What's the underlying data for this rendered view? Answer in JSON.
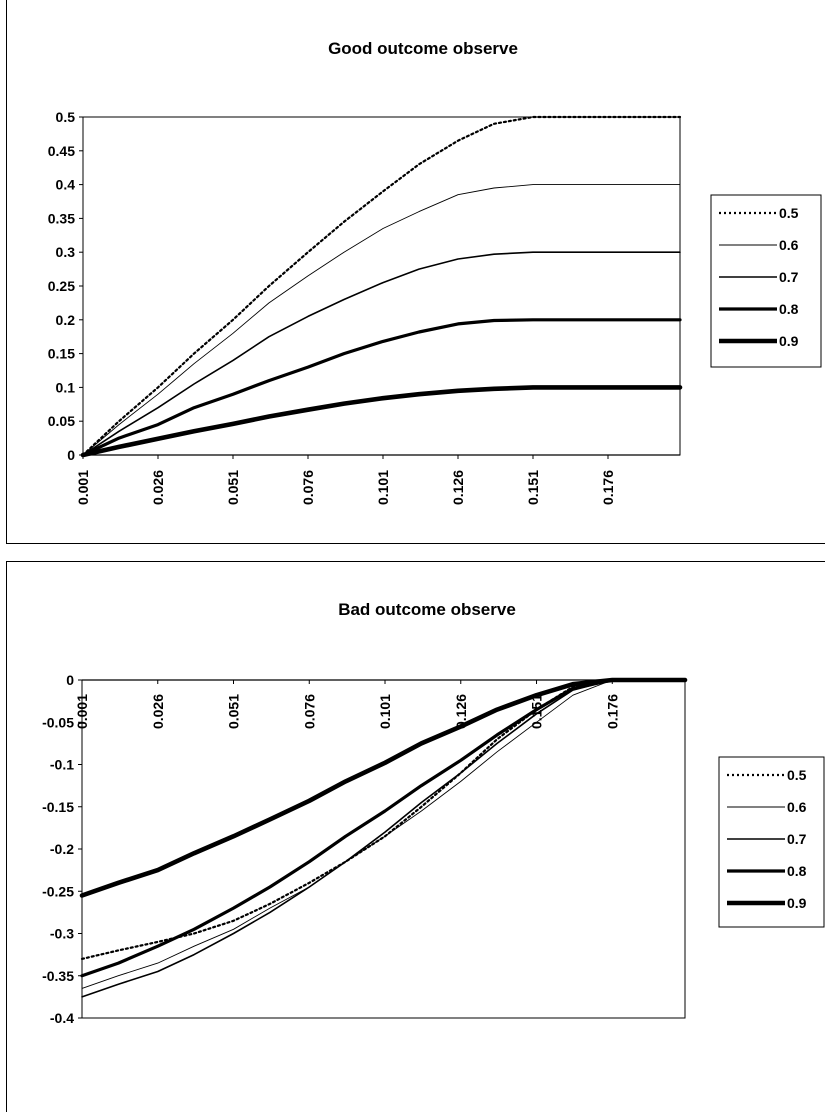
{
  "chart_data": [
    {
      "type": "line",
      "title": "Good outcome observe",
      "xlabel": "",
      "ylabel": "",
      "x_tick_labels": [
        "0.001",
        "0.026",
        "0.051",
        "0.076",
        "0.101",
        "0.126",
        "0.151",
        "0.176"
      ],
      "y_tick_labels": [
        "0.5",
        "0.45",
        "0.4",
        "0.35",
        "0.3",
        "0.25",
        "0.2",
        "0.15",
        "0.1",
        "0.05",
        "0"
      ],
      "xlim": [
        0.001,
        0.2
      ],
      "ylim": [
        0,
        0.5
      ],
      "grid": false,
      "legend_position": "right",
      "x": [
        0.001,
        0.013,
        0.026,
        0.038,
        0.051,
        0.063,
        0.076,
        0.088,
        0.101,
        0.113,
        0.126,
        0.138,
        0.151,
        0.163,
        0.176,
        0.188,
        0.2
      ],
      "series": [
        {
          "name": "0.5",
          "values": [
            0,
            0.05,
            0.1,
            0.15,
            0.2,
            0.25,
            0.3,
            0.345,
            0.39,
            0.43,
            0.465,
            0.49,
            0.5,
            0.5,
            0.5,
            0.5,
            0.5
          ]
        },
        {
          "name": "0.6",
          "values": [
            0,
            0.045,
            0.09,
            0.135,
            0.18,
            0.225,
            0.265,
            0.3,
            0.335,
            0.36,
            0.385,
            0.395,
            0.4,
            0.4,
            0.4,
            0.4,
            0.4
          ]
        },
        {
          "name": "0.7",
          "values": [
            0,
            0.035,
            0.07,
            0.105,
            0.14,
            0.175,
            0.205,
            0.23,
            0.255,
            0.275,
            0.29,
            0.297,
            0.3,
            0.3,
            0.3,
            0.3,
            0.3
          ]
        },
        {
          "name": "0.8",
          "values": [
            0,
            0.025,
            0.045,
            0.07,
            0.09,
            0.11,
            0.13,
            0.15,
            0.168,
            0.182,
            0.194,
            0.199,
            0.2,
            0.2,
            0.2,
            0.2,
            0.2
          ]
        },
        {
          "name": "0.9",
          "values": [
            0,
            0.012,
            0.024,
            0.035,
            0.046,
            0.057,
            0.067,
            0.076,
            0.084,
            0.09,
            0.095,
            0.098,
            0.1,
            0.1,
            0.1,
            0.1,
            0.1
          ]
        }
      ],
      "colors": {
        "line": "#000000",
        "background": "#ffffff"
      }
    },
    {
      "type": "line",
      "title": "Bad outcome observe",
      "xlabel": "",
      "ylabel": "",
      "x_tick_labels": [
        "0.001",
        "0.026",
        "0.051",
        "0.076",
        "0.101",
        "0.126",
        "0.151",
        "0.176"
      ],
      "y_tick_labels": [
        "0",
        "-0.05",
        "-0.1",
        "-0.15",
        "-0.2",
        "-0.25",
        "-0.3",
        "-0.35",
        "-0.4"
      ],
      "xlim": [
        0.001,
        0.2
      ],
      "ylim": [
        -0.4,
        0
      ],
      "grid": false,
      "legend_position": "right",
      "x": [
        0.001,
        0.013,
        0.026,
        0.038,
        0.051,
        0.063,
        0.076,
        0.088,
        0.101,
        0.113,
        0.126,
        0.138,
        0.151,
        0.163,
        0.176,
        0.188,
        0.2
      ],
      "series": [
        {
          "name": "0.5",
          "values": [
            -0.33,
            -0.32,
            -0.31,
            -0.3,
            -0.285,
            -0.265,
            -0.24,
            -0.215,
            -0.185,
            -0.15,
            -0.11,
            -0.07,
            -0.035,
            -0.008,
            0,
            0,
            0
          ]
        },
        {
          "name": "0.6",
          "values": [
            -0.365,
            -0.35,
            -0.335,
            -0.315,
            -0.295,
            -0.27,
            -0.245,
            -0.215,
            -0.185,
            -0.155,
            -0.12,
            -0.085,
            -0.05,
            -0.018,
            0,
            0,
            0
          ]
        },
        {
          "name": "0.7",
          "values": [
            -0.375,
            -0.36,
            -0.345,
            -0.325,
            -0.3,
            -0.275,
            -0.245,
            -0.215,
            -0.18,
            -0.145,
            -0.11,
            -0.075,
            -0.04,
            -0.012,
            0,
            0,
            0
          ]
        },
        {
          "name": "0.8",
          "values": [
            -0.35,
            -0.335,
            -0.315,
            -0.295,
            -0.27,
            -0.245,
            -0.215,
            -0.185,
            -0.155,
            -0.125,
            -0.095,
            -0.065,
            -0.035,
            -0.01,
            0,
            0,
            0
          ]
        },
        {
          "name": "0.9",
          "values": [
            -0.255,
            -0.24,
            -0.225,
            -0.205,
            -0.185,
            -0.165,
            -0.143,
            -0.12,
            -0.098,
            -0.075,
            -0.055,
            -0.035,
            -0.018,
            -0.005,
            0,
            0,
            0
          ]
        }
      ],
      "colors": {
        "line": "#000000",
        "background": "#ffffff"
      }
    }
  ]
}
